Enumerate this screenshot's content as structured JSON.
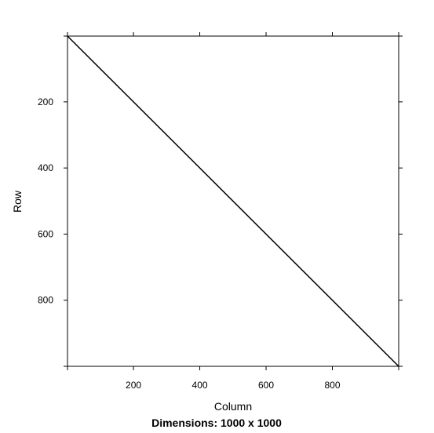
{
  "chart_data": {
    "type": "line",
    "title": "Dimensions: 1000 x 1000",
    "xlabel": "Column",
    "ylabel": "Row",
    "xlim": [
      1,
      1000
    ],
    "ylim": [
      1000,
      1
    ],
    "y_axis_reversed": true,
    "x_ticks": [
      200,
      400,
      600,
      800
    ],
    "y_ticks": [
      200,
      400,
      600,
      800
    ],
    "grid": false,
    "legend": "none",
    "series": [
      {
        "x": [
          1,
          1000
        ],
        "y": [
          1,
          1000
        ],
        "color": "#000000"
      }
    ]
  }
}
